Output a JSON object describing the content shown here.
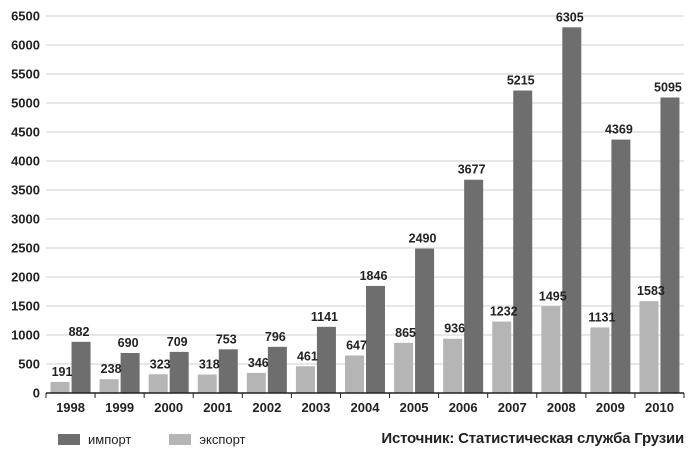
{
  "chart_data": {
    "type": "bar",
    "categories": [
      "1998",
      "1999",
      "2000",
      "2001",
      "2002",
      "2003",
      "2004",
      "2005",
      "2006",
      "2007",
      "2008",
      "2009",
      "2010"
    ],
    "series": [
      {
        "name": "экспорт",
        "color": "#b5b5b5",
        "values": [
          191,
          238,
          323,
          318,
          346,
          461,
          647,
          865,
          936,
          1232,
          1495,
          1131,
          1583
        ]
      },
      {
        "name": "импорт",
        "color": "#6e6e6e",
        "values": [
          882,
          690,
          709,
          753,
          796,
          1141,
          1846,
          2490,
          3677,
          5215,
          6305,
          4369,
          5095
        ]
      }
    ],
    "yticks": [
      "0",
      "500",
      "1000",
      "1500",
      "2000",
      "2500",
      "3000",
      "3500",
      "4000",
      "4500",
      "5000",
      "5500",
      "6000",
      "6500"
    ],
    "ylim": [
      0,
      6500
    ],
    "grid": true,
    "legend_position": "bottom-left"
  },
  "legend": {
    "import_label": "импорт",
    "export_label": "экспорт",
    "import_color": "#6e6e6e",
    "export_color": "#b5b5b5"
  },
  "source": "Источник: Статистическая служба Грузии"
}
